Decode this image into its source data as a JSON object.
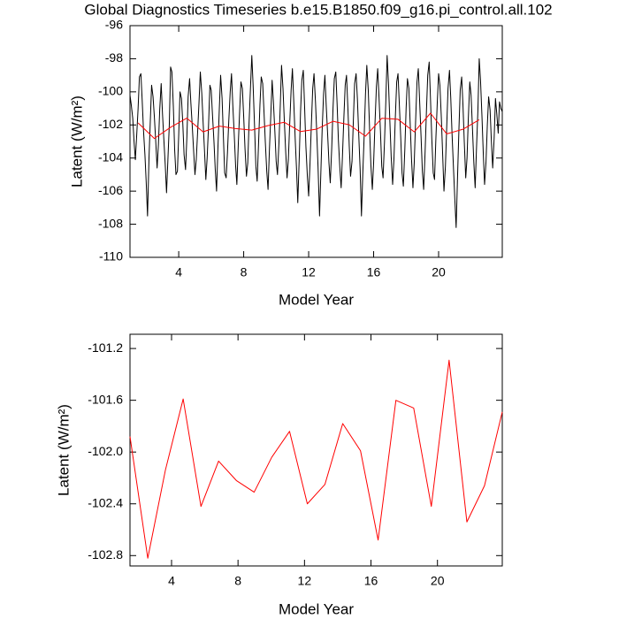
{
  "chart_data": [
    {
      "type": "line",
      "title": "Global Diagnostics Timeseries b.e15.B1850.f09_g16.pi_control.all.102",
      "xlabel": "Model Year",
      "ylabel": "Latent (W/m²)",
      "xlim": [
        1,
        23.92
      ],
      "xticks": [
        4,
        8,
        12,
        16,
        20
      ],
      "ylim": [
        -110,
        -96
      ],
      "yticks": [
        -96,
        -98,
        -100,
        -102,
        -104,
        -106,
        -108,
        -110
      ],
      "grid": false,
      "series": [
        {
          "color": "#000000",
          "x": [
            1,
            1.08,
            1.17,
            1.25,
            1.33,
            1.42,
            1.5,
            1.58,
            1.67,
            1.75,
            1.83,
            1.92,
            2,
            2.08,
            2.17,
            2.25,
            2.33,
            2.42,
            2.5,
            2.58,
            2.67,
            2.75,
            2.83,
            2.92,
            3,
            3.08,
            3.17,
            3.25,
            3.33,
            3.42,
            3.5,
            3.58,
            3.67,
            3.75,
            3.83,
            3.92,
            4,
            4.08,
            4.17,
            4.25,
            4.33,
            4.42,
            4.5,
            4.58,
            4.67,
            4.75,
            4.83,
            4.92,
            5,
            5.08,
            5.17,
            5.25,
            5.33,
            5.42,
            5.5,
            5.58,
            5.67,
            5.75,
            5.83,
            5.92,
            6,
            6.08,
            6.17,
            6.25,
            6.33,
            6.42,
            6.5,
            6.58,
            6.67,
            6.75,
            6.83,
            6.92,
            7,
            7.08,
            7.17,
            7.25,
            7.33,
            7.42,
            7.5,
            7.58,
            7.67,
            7.75,
            7.83,
            7.92,
            8,
            8.08,
            8.17,
            8.25,
            8.33,
            8.42,
            8.5,
            8.58,
            8.67,
            8.75,
            8.83,
            8.92,
            9,
            9.08,
            9.17,
            9.25,
            9.33,
            9.42,
            9.5,
            9.58,
            9.67,
            9.75,
            9.83,
            9.92,
            10,
            10.08,
            10.17,
            10.25,
            10.33,
            10.42,
            10.5,
            10.58,
            10.67,
            10.75,
            10.83,
            10.92,
            11,
            11.08,
            11.17,
            11.25,
            11.33,
            11.42,
            11.5,
            11.58,
            11.67,
            11.75,
            11.83,
            11.92,
            12,
            12.08,
            12.17,
            12.25,
            12.33,
            12.42,
            12.5,
            12.58,
            12.67,
            12.75,
            12.83,
            12.92,
            13,
            13.08,
            13.17,
            13.25,
            13.33,
            13.42,
            13.5,
            13.58,
            13.67,
            13.75,
            13.83,
            13.92,
            14,
            14.08,
            14.17,
            14.25,
            14.33,
            14.42,
            14.5,
            14.58,
            14.67,
            14.75,
            14.83,
            14.92,
            15,
            15.08,
            15.17,
            15.25,
            15.33,
            15.42,
            15.5,
            15.58,
            15.67,
            15.75,
            15.83,
            15.92,
            16,
            16.08,
            16.17,
            16.25,
            16.33,
            16.42,
            16.5,
            16.58,
            16.67,
            16.75,
            16.83,
            16.92,
            17,
            17.08,
            17.17,
            17.25,
            17.33,
            17.42,
            17.5,
            17.58,
            17.67,
            17.75,
            17.83,
            17.92,
            18,
            18.08,
            18.17,
            18.25,
            18.33,
            18.42,
            18.5,
            18.58,
            18.67,
            18.75,
            18.83,
            18.92,
            19,
            19.08,
            19.17,
            19.25,
            19.33,
            19.42,
            19.5,
            19.58,
            19.67,
            19.75,
            19.83,
            19.92,
            20,
            20.08,
            20.17,
            20.25,
            20.33,
            20.42,
            20.5,
            20.58,
            20.67,
            20.75,
            20.83,
            20.92,
            21,
            21.08,
            21.17,
            21.25,
            21.33,
            21.42,
            21.5,
            21.58,
            21.67,
            21.75,
            21.83,
            21.92,
            22,
            22.08,
            22.17,
            22.25,
            22.33,
            22.42,
            22.5,
            22.58,
            22.67,
            22.75,
            22.83,
            22.92,
            23,
            23.08,
            23.17,
            23.25,
            23.33,
            23.42,
            23.5,
            23.58,
            23.67,
            23.75,
            23.83,
            23.92
          ],
          "values": [
            -100.2,
            -100.8,
            -101.6,
            -103.0,
            -104.1,
            -102.5,
            -101.0,
            -99.1,
            -98.9,
            -100.5,
            -102.3,
            -103.8,
            -105.5,
            -107.5,
            -104.0,
            -101.8,
            -99.6,
            -100.3,
            -101.5,
            -102.9,
            -104.6,
            -103.2,
            -101.1,
            -99.5,
            -101.3,
            -102.8,
            -104.4,
            -106.1,
            -104.2,
            -102.0,
            -98.5,
            -98.8,
            -100.9,
            -103.5,
            -105.0,
            -104.8,
            -102.6,
            -100.0,
            -100.4,
            -101.9,
            -103.8,
            -104.7,
            -102.8,
            -100.3,
            -99.2,
            -100.7,
            -102.0,
            -103.6,
            -105.0,
            -104.1,
            -102.3,
            -100.6,
            -98.8,
            -100.1,
            -101.8,
            -103.4,
            -105.3,
            -104.0,
            -102.2,
            -99.6,
            -99.9,
            -101.4,
            -103.0,
            -104.7,
            -106.0,
            -103.2,
            -101.0,
            -99.0,
            -100.4,
            -102.7,
            -104.9,
            -105.2,
            -103.7,
            -101.8,
            -100.0,
            -98.9,
            -100.8,
            -102.6,
            -104.4,
            -105.6,
            -103.1,
            -101.2,
            -99.4,
            -99.8,
            -101.5,
            -103.4,
            -105.1,
            -104.3,
            -101.9,
            -99.7,
            -97.8,
            -99.6,
            -102.1,
            -104.5,
            -105.4,
            -103.0,
            -100.8,
            -99.1,
            -99.5,
            -101.2,
            -103.0,
            -104.8,
            -105.9,
            -103.6,
            -101.4,
            -99.3,
            -100.6,
            -102.4,
            -104.2,
            -105.0,
            -103.1,
            -100.9,
            -98.4,
            -99.8,
            -101.7,
            -103.5,
            -105.2,
            -104.1,
            -102.0,
            -99.9,
            -98.6,
            -100.5,
            -102.8,
            -104.6,
            -106.7,
            -104.0,
            -101.2,
            -99.3,
            -98.7,
            -100.9,
            -103.3,
            -105.1,
            -106.3,
            -104.4,
            -101.9,
            -99.8,
            -98.9,
            -100.6,
            -102.5,
            -104.6,
            -107.5,
            -104.9,
            -102.3,
            -100.1,
            -99.0,
            -100.8,
            -102.6,
            -104.3,
            -105.5,
            -103.4,
            -101.0,
            -99.2,
            -98.8,
            -100.7,
            -102.9,
            -104.6,
            -105.8,
            -103.9,
            -101.5,
            -99.6,
            -99.0,
            -101.1,
            -103.3,
            -105.1,
            -104.2,
            -101.8,
            -99.5,
            -98.9,
            -100.4,
            -102.5,
            -104.7,
            -107.5,
            -105.0,
            -102.6,
            -100.1,
            -98.4,
            -99.9,
            -102.2,
            -104.4,
            -105.9,
            -104.3,
            -102.0,
            -99.7,
            -98.6,
            -100.3,
            -102.4,
            -104.5,
            -105.2,
            -103.0,
            -100.6,
            -97.8,
            -99.6,
            -101.8,
            -103.9,
            -105.6,
            -104.1,
            -101.7,
            -99.4,
            -98.9,
            -100.7,
            -102.8,
            -104.9,
            -105.7,
            -103.5,
            -101.0,
            -99.2,
            -99.8,
            -101.9,
            -104.0,
            -105.8,
            -104.3,
            -101.9,
            -99.4,
            -98.6,
            -100.5,
            -102.7,
            -104.8,
            -105.9,
            -103.6,
            -101.2,
            -99.0,
            -98.2,
            -100.4,
            -102.8,
            -104.9,
            -105.3,
            -102.9,
            -100.6,
            -98.9,
            -99.6,
            -101.6,
            -103.8,
            -106.0,
            -104.5,
            -102.1,
            -99.8,
            -98.7,
            -100.4,
            -102.6,
            -104.7,
            -106.5,
            -108.2,
            -105.0,
            -102.3,
            -99.9,
            -99.1,
            -100.8,
            -103.0,
            -105.2,
            -104.0,
            -101.6,
            -99.4,
            -100.2,
            -102.1,
            -104.3,
            -105.8,
            -103.5,
            -101.1,
            -98.0,
            -99.3,
            -101.5,
            -103.7,
            -105.6,
            -104.2,
            -102.0,
            -100.3,
            -101.1,
            -103.0,
            -104.6,
            -102.8,
            -100.4,
            -101.3,
            -102.5,
            -100.6,
            -101.0,
            -101.2
          ]
        },
        {
          "color": "#ff0000",
          "x": [
            1.5,
            2.5,
            3.5,
            4.5,
            5.5,
            6.5,
            7.5,
            8.5,
            9.5,
            10.5,
            11.5,
            12.5,
            13.5,
            14.5,
            15.5,
            16.5,
            17.5,
            18.5,
            19.5,
            20.5,
            21.5,
            22.5
          ],
          "values": [
            -101.88,
            -102.82,
            -102.14,
            -101.59,
            -102.42,
            -102.07,
            -102.22,
            -102.31,
            -102.04,
            -101.84,
            -102.4,
            -102.25,
            -101.78,
            -101.99,
            -102.68,
            -101.6,
            -101.66,
            -102.42,
            -101.29,
            -102.54,
            -102.26,
            -101.69
          ]
        }
      ]
    },
    {
      "type": "line",
      "xlabel": "Model Year",
      "ylabel": "Latent (W/m²)",
      "xlim": [
        1.5,
        23.9
      ],
      "xticks": [
        4,
        8,
        12,
        16,
        20
      ],
      "ylim": [
        -102.88,
        -101.09
      ],
      "yticks": [
        -101.2,
        -101.6,
        {
          "value": -102,
          "label": "-102.0"
        },
        -102.4,
        -102.8
      ],
      "grid": false,
      "series": [
        {
          "color": "#ff0000",
          "x": [
            1.5,
            2.57,
            3.63,
            4.7,
            5.77,
            6.83,
            7.9,
            8.97,
            10.03,
            11.1,
            12.17,
            13.23,
            14.3,
            15.37,
            16.43,
            17.5,
            18.57,
            19.63,
            20.7,
            21.77,
            22.83,
            23.9
          ],
          "values": [
            -101.88,
            -102.82,
            -102.14,
            -101.59,
            -102.42,
            -102.07,
            -102.22,
            -102.31,
            -102.04,
            -101.84,
            -102.4,
            -102.25,
            -101.78,
            -101.99,
            -102.68,
            -101.6,
            -101.66,
            -102.42,
            -101.29,
            -102.54,
            -102.26,
            -101.69
          ]
        }
      ]
    }
  ]
}
